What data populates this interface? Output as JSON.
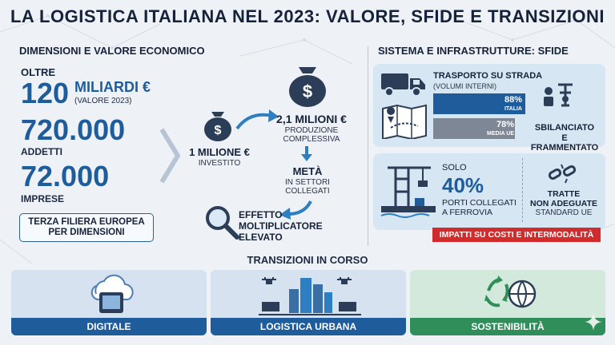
{
  "title": "LA LOGISTICA ITALIANA NEL 2023: VALORE, SFIDE E TRANSIZIONI",
  "left": {
    "heading": "DIMENSIONI E VALORE ECONOMICO",
    "oltre": "OLTRE",
    "value_num": "120",
    "value_unit": "MILIARDI €",
    "value_note": "(VALORE 2023)",
    "addetti_num": "720.000",
    "addetti_label": "ADDETTI",
    "imprese_num": "72.000",
    "imprese_label": "IMPRESE",
    "filiera_line1": "TERZA FILIERA EUROPEA",
    "filiera_line2": "PER DIMENSIONI"
  },
  "flow": {
    "invest_amount": "1 MILIONE €",
    "invest_label": "INVESTITO",
    "produzione_amount": "2,1 MILIONI €",
    "produzione_line1": "PRODUZIONE",
    "produzione_line2": "COMPLESSIVA",
    "meta_title": "METÀ",
    "meta_line1": "IN SETTORI",
    "meta_line2": "COLLEGATI",
    "effetto_line1": "EFFETTO",
    "effetto_line2": "MOLTIPLICATORE",
    "effetto_line3": "ELEVATO"
  },
  "right": {
    "heading": "SISTEMA E INFRASTRUTTURE: SFIDE",
    "road_title": "TRASPORTO SU STRADA",
    "road_sub": "(VOLUMI INTERNI)",
    "bars": [
      {
        "percent": 88,
        "pct_label": "88%",
        "name": "ITALIA",
        "color": "#1f5c9c"
      },
      {
        "percent": 78,
        "pct_label": "78%",
        "name": "MEDIA UE",
        "color": "#7d8796"
      }
    ],
    "sbilanciato_line1": "SBILANCIATO",
    "sbilanciato_line2": "E FRAMMENTATO",
    "solo": "SOLO",
    "porti_pct": "40%",
    "porti_line1": "PORTI COLLEGATI",
    "porti_line2": "A FERROVIA",
    "tratte_line1": "TRATTE",
    "tratte_line2": "NON ADEGUATE",
    "tratte_line3": "STANDARD UE",
    "impatti": "IMPATTI SU COSTI E INTERMODALITÀ"
  },
  "bottom": {
    "heading": "TRANSIZIONI IN CORSO",
    "cards": [
      {
        "label": "DIGITALE",
        "color": "#1f5c9c"
      },
      {
        "label": "LOGISTICA URBANA",
        "color": "#1f5c9c"
      },
      {
        "label": "SOSTENIBILITÀ",
        "color": "#2f8e5a"
      }
    ]
  }
}
